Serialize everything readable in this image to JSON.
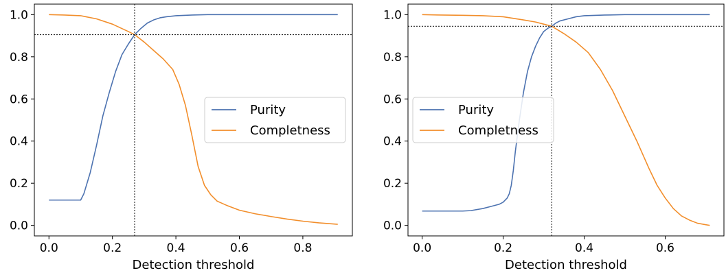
{
  "chart_data": [
    {
      "type": "line",
      "xlabel": "Detection threshold",
      "ylabel": "",
      "xlim": [
        -0.046,
        0.956
      ],
      "ylim": [
        -0.05,
        1.05
      ],
      "xticks": [
        0.0,
        0.2,
        0.4,
        0.6,
        0.8
      ],
      "xtick_labels": [
        "0.0",
        "0.2",
        "0.4",
        "0.6",
        "0.8"
      ],
      "yticks": [
        0.0,
        0.2,
        0.4,
        0.6,
        0.8,
        1.0
      ],
      "ytick_labels": [
        "0.0",
        "0.2",
        "0.4",
        "0.6",
        "0.8",
        "1.0"
      ],
      "grid": false,
      "legend": "center-right",
      "series": [
        {
          "name": "Purity",
          "color": "#4c72b0",
          "x": [
            0.0,
            0.05,
            0.1,
            0.11,
            0.13,
            0.15,
            0.17,
            0.19,
            0.21,
            0.23,
            0.25,
            0.27,
            0.29,
            0.31,
            0.33,
            0.35,
            0.37,
            0.4,
            0.45,
            0.5,
            0.6,
            0.7,
            0.8,
            0.91
          ],
          "y": [
            0.12,
            0.12,
            0.12,
            0.15,
            0.25,
            0.38,
            0.52,
            0.63,
            0.73,
            0.81,
            0.86,
            0.905,
            0.935,
            0.96,
            0.975,
            0.985,
            0.99,
            0.995,
            0.998,
            1.0,
            1.0,
            1.0,
            1.0,
            1.0
          ]
        },
        {
          "name": "Completness",
          "color": "#f28e2b",
          "x": [
            0.0,
            0.05,
            0.1,
            0.15,
            0.2,
            0.25,
            0.27,
            0.3,
            0.33,
            0.36,
            0.39,
            0.41,
            0.43,
            0.45,
            0.47,
            0.49,
            0.51,
            0.53,
            0.56,
            0.6,
            0.65,
            0.7,
            0.75,
            0.8,
            0.85,
            0.91
          ],
          "y": [
            1.0,
            0.998,
            0.995,
            0.98,
            0.955,
            0.92,
            0.905,
            0.87,
            0.83,
            0.79,
            0.74,
            0.67,
            0.57,
            0.43,
            0.28,
            0.19,
            0.145,
            0.115,
            0.095,
            0.072,
            0.055,
            0.042,
            0.03,
            0.02,
            0.012,
            0.005
          ]
        }
      ],
      "reference_lines": {
        "vertical_x": 0.27,
        "horizontal_y": 0.905
      }
    },
    {
      "type": "line",
      "xlabel": "Detection threshold",
      "ylabel": "",
      "xlim": [
        -0.035,
        0.745
      ],
      "ylim": [
        -0.05,
        1.05
      ],
      "xticks": [
        0.0,
        0.2,
        0.4,
        0.6
      ],
      "xtick_labels": [
        "0.0",
        "0.2",
        "0.4",
        "0.6"
      ],
      "yticks": [
        0.0,
        0.2,
        0.4,
        0.6,
        0.8,
        1.0
      ],
      "ytick_labels": [
        "0.0",
        "0.2",
        "0.4",
        "0.6",
        "0.8",
        "1.0"
      ],
      "grid": false,
      "legend": "center-left",
      "series": [
        {
          "name": "Purity",
          "color": "#4c72b0",
          "x": [
            0.0,
            0.05,
            0.1,
            0.12,
            0.15,
            0.17,
            0.19,
            0.2,
            0.21,
            0.215,
            0.22,
            0.225,
            0.23,
            0.24,
            0.25,
            0.26,
            0.27,
            0.28,
            0.29,
            0.3,
            0.31,
            0.32,
            0.33,
            0.34,
            0.36,
            0.38,
            0.4,
            0.45,
            0.5,
            0.6,
            0.71
          ],
          "y": [
            0.068,
            0.068,
            0.068,
            0.07,
            0.08,
            0.09,
            0.1,
            0.11,
            0.13,
            0.15,
            0.19,
            0.26,
            0.35,
            0.5,
            0.63,
            0.73,
            0.8,
            0.85,
            0.89,
            0.92,
            0.935,
            0.945,
            0.96,
            0.97,
            0.98,
            0.99,
            0.995,
            0.998,
            1.0,
            1.0,
            1.0
          ]
        },
        {
          "name": "Completness",
          "color": "#f28e2b",
          "x": [
            0.0,
            0.05,
            0.1,
            0.15,
            0.2,
            0.25,
            0.28,
            0.3,
            0.32,
            0.35,
            0.38,
            0.41,
            0.44,
            0.47,
            0.5,
            0.53,
            0.56,
            0.58,
            0.6,
            0.62,
            0.64,
            0.66,
            0.68,
            0.7,
            0.71
          ],
          "y": [
            1.0,
            0.998,
            0.997,
            0.995,
            0.99,
            0.975,
            0.965,
            0.955,
            0.945,
            0.91,
            0.87,
            0.82,
            0.74,
            0.64,
            0.52,
            0.4,
            0.27,
            0.19,
            0.13,
            0.08,
            0.045,
            0.025,
            0.01,
            0.003,
            0.0
          ]
        }
      ],
      "reference_lines": {
        "vertical_x": 0.32,
        "horizontal_y": 0.945
      }
    }
  ]
}
